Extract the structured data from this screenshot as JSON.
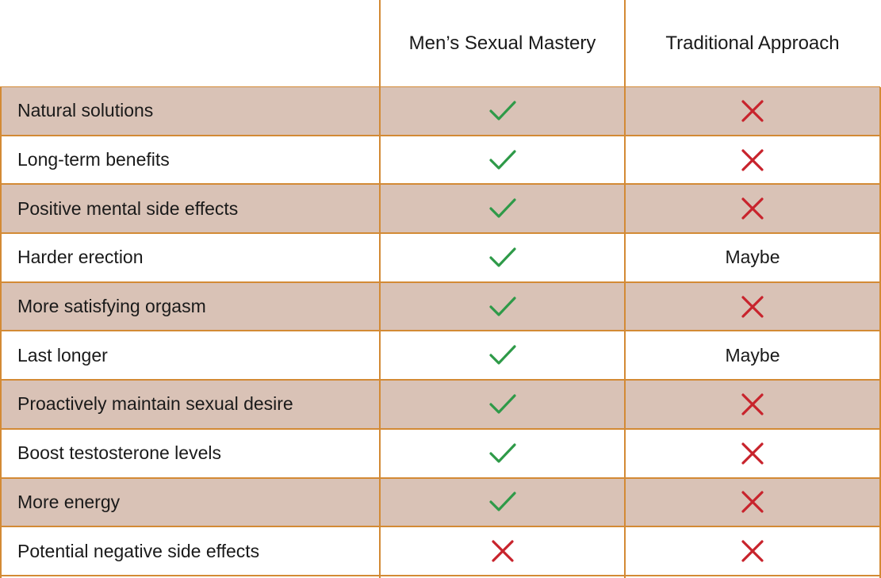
{
  "columns": {
    "feature": "",
    "a": "Men’s Sexual Mastery",
    "b": "Traditional Approach"
  },
  "rows": [
    {
      "label": "Natural solutions",
      "a": "check",
      "b": "cross"
    },
    {
      "label": "Long-term benefits",
      "a": "check",
      "b": "cross"
    },
    {
      "label": "Positive mental side effects",
      "a": "check",
      "b": "cross"
    },
    {
      "label": "Harder erection",
      "a": "check",
      "b": "Maybe"
    },
    {
      "label": "More satisfying orgasm",
      "a": "check",
      "b": "cross"
    },
    {
      "label": "Last longer",
      "a": "check",
      "b": "Maybe"
    },
    {
      "label": "Proactively maintain sexual desire",
      "a": "check",
      "b": "cross"
    },
    {
      "label": "Boost testosterone levels",
      "a": "check",
      "b": "cross"
    },
    {
      "label": "More energy",
      "a": "check",
      "b": "cross"
    },
    {
      "label": "Potential negative side effects",
      "a": "cross",
      "b": "cross"
    }
  ],
  "icons": {
    "check": "check-icon",
    "cross": "cross-icon"
  },
  "colors": {
    "border": "#d38a35",
    "shaded_row": "#d9c2b6",
    "check": "#2e9a48",
    "cross": "#c8232c"
  }
}
